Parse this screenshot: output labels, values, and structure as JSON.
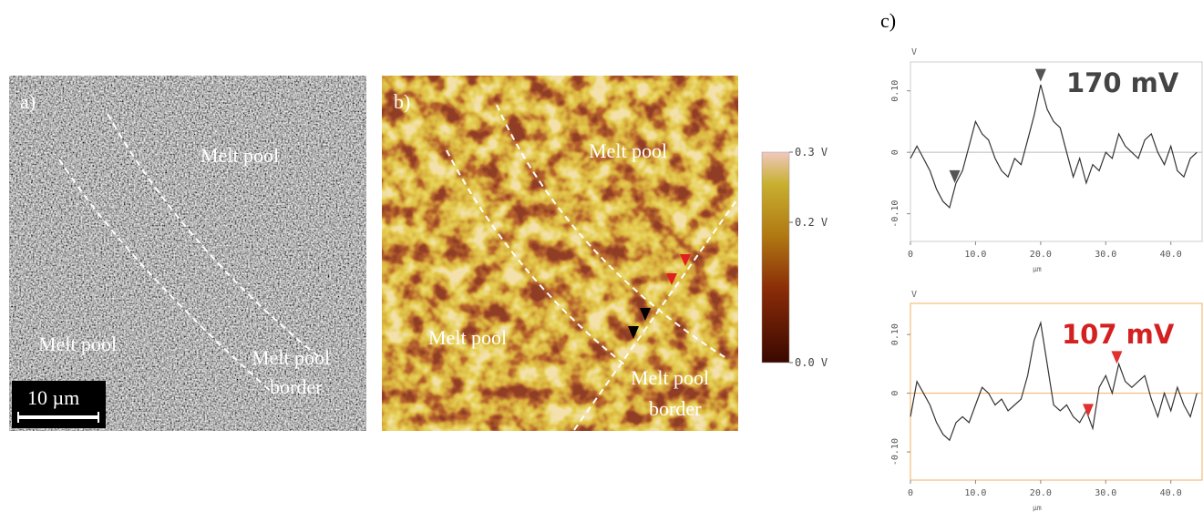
{
  "panel_a": {
    "label": "a)",
    "regions": [
      "Melt pool",
      "Melt pool"
    ],
    "border": [
      "Melt pool",
      "border"
    ],
    "scale_bar": "10 µm"
  },
  "panel_b": {
    "label": "b)",
    "regions": [
      "Melt pool",
      "Melt pool"
    ],
    "border": [
      "Melt pool",
      "border"
    ],
    "colorbar": {
      "clim": [
        0,
        0.3
      ],
      "ticks": [
        {
          "value": 0.3,
          "label": "0.3 V"
        },
        {
          "value": 0.2,
          "label": "0.2 V"
        },
        {
          "value": 0,
          "label": "0.0 V"
        }
      ]
    }
  },
  "panel_c": {
    "label": "c)"
  },
  "chart_data": [
    {
      "type": "line",
      "y_label": "V",
      "x_label": "µm",
      "annotation": "170 mV",
      "annotation_color": "#444444",
      "color": "#333333",
      "frame_color": "#cccccc",
      "zero_line_color": "#bbbbbb",
      "marker_color": "#555555",
      "xlim": [
        0,
        44.8
      ],
      "ylim": [
        -0.145,
        0.147
      ],
      "xticks": [
        0,
        {
          "value": 10,
          "label": "10.0"
        },
        {
          "value": 20,
          "label": "20.0"
        },
        {
          "value": 30,
          "label": "30.0"
        },
        {
          "value": 40,
          "label": "40.0"
        }
      ],
      "yticks": [
        {
          "value": 0.1,
          "label": "0.10"
        },
        0,
        {
          "value": -0.1,
          "label": "-0.10"
        }
      ],
      "x": [
        0,
        1,
        2,
        3,
        4,
        5,
        6,
        7,
        8,
        9,
        10,
        11,
        12,
        13,
        14,
        15,
        16,
        17,
        18,
        19,
        20,
        21,
        22,
        23,
        24,
        25,
        26,
        27,
        28,
        29,
        30,
        31,
        32,
        33,
        34,
        35,
        36,
        37,
        38,
        39,
        40,
        41,
        42,
        43,
        44
      ],
      "values": [
        -0.01,
        0.01,
        -0.01,
        -0.03,
        -0.06,
        -0.08,
        -0.09,
        -0.05,
        -0.03,
        0.01,
        0.05,
        0.03,
        0.02,
        -0.01,
        -0.03,
        -0.04,
        -0.01,
        -0.02,
        0.02,
        0.06,
        0.11,
        0.07,
        0.05,
        0.04,
        0,
        -0.04,
        -0.01,
        -0.05,
        -0.02,
        -0.03,
        0,
        -0.01,
        0.03,
        0.01,
        0,
        -0.01,
        0.02,
        0.03,
        0,
        -0.02,
        0.01,
        -0.03,
        -0.04,
        -0.01,
        0
      ],
      "markers": [
        {
          "x": 20,
          "y": 0.115
        },
        {
          "x": 6.8,
          "y": -0.05
        }
      ]
    },
    {
      "type": "line",
      "y_label": "V",
      "x_label": "µm",
      "annotation": "107 mV",
      "annotation_color": "#d42020",
      "color": "#333333",
      "frame_color": "#f0b060",
      "zero_line_color": "#f0b060",
      "marker_color": "#e03030",
      "xlim": [
        0,
        44.8
      ],
      "ylim": [
        -0.148,
        0.153
      ],
      "xticks": [
        0,
        {
          "value": 10,
          "label": "10.0"
        },
        {
          "value": 20,
          "label": "20.0"
        },
        {
          "value": 30,
          "label": "30.0"
        },
        {
          "value": 40,
          "label": "40.0"
        }
      ],
      "yticks": [
        {
          "value": 0.1,
          "label": "0.10"
        },
        0,
        {
          "value": -0.1,
          "label": "-0.10"
        }
      ],
      "x": [
        0,
        1,
        2,
        3,
        4,
        5,
        6,
        7,
        8,
        9,
        10,
        11,
        12,
        13,
        14,
        15,
        16,
        17,
        18,
        19,
        20,
        21,
        22,
        23,
        24,
        25,
        26,
        27,
        28,
        29,
        30,
        31,
        32,
        33,
        34,
        35,
        36,
        37,
        38,
        39,
        40,
        41,
        42,
        43,
        44
      ],
      "values": [
        -0.04,
        0.02,
        0,
        -0.02,
        -0.05,
        -0.07,
        -0.08,
        -0.05,
        -0.04,
        -0.05,
        -0.02,
        0.01,
        0,
        -0.02,
        -0.01,
        -0.03,
        -0.02,
        -0.01,
        0.03,
        0.09,
        0.12,
        0.05,
        -0.02,
        -0.03,
        -0.02,
        -0.04,
        -0.05,
        -0.03,
        -0.06,
        0.01,
        0.03,
        0,
        0.05,
        0.02,
        0.01,
        0.02,
        0.03,
        -0.01,
        -0.04,
        0,
        -0.03,
        0.01,
        -0.02,
        -0.04,
        0
      ],
      "markers": [
        {
          "x": 31.7,
          "y": 0.05
        },
        {
          "x": 27.3,
          "y": -0.04
        }
      ]
    }
  ]
}
